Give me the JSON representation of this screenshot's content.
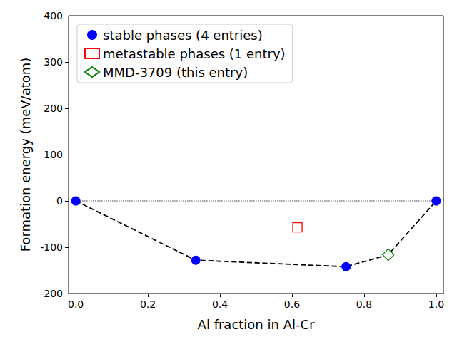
{
  "chart_data": {
    "type": "scatter",
    "x_label": "Al fraction in Al-Cr",
    "y_label": "Formation energy (meV/atom)",
    "xlim": [
      -0.02,
      1.02
    ],
    "xticks": [
      {
        "value": 0,
        "label": "0.0"
      },
      {
        "value": 0.2,
        "label": "0.2"
      },
      {
        "value": 0.4,
        "label": "0.4"
      },
      {
        "value": 0.6,
        "label": "0.6"
      },
      {
        "value": 0.8,
        "label": "0.8"
      },
      {
        "value": 1,
        "label": "1.0"
      }
    ],
    "ylim": [
      -200,
      400
    ],
    "yticks": [
      -200,
      -100,
      0,
      100,
      200,
      300,
      400
    ],
    "grid": false,
    "legend": "upper left",
    "series": [
      {
        "name": "stable phases (4 entries)",
        "color": "#0000ff",
        "marker": "circle",
        "x": [
          0,
          0.333,
          0.75,
          1
        ],
        "values": [
          0,
          -128,
          -142,
          0
        ]
      },
      {
        "name": "metastable phases (1 entry)",
        "color": "#ff0000",
        "marker": "square-open",
        "x": [
          0.615
        ],
        "values": [
          -57
        ]
      },
      {
        "name": "MMD-3709 (this entry)",
        "color": "#008000",
        "marker": "diamond-open",
        "x": [
          0.867
        ],
        "values": [
          -116
        ]
      }
    ],
    "hull": {
      "x": [
        0,
        0.333,
        0.75,
        0.867,
        1
      ],
      "values": [
        0,
        -128,
        -142,
        -116,
        0
      ],
      "color": "#000000",
      "line_style": "dashed"
    },
    "zero_line": {
      "x": [
        0,
        1
      ],
      "values": [
        0,
        0
      ],
      "color": "#808080",
      "line_style": "dotted"
    }
  }
}
